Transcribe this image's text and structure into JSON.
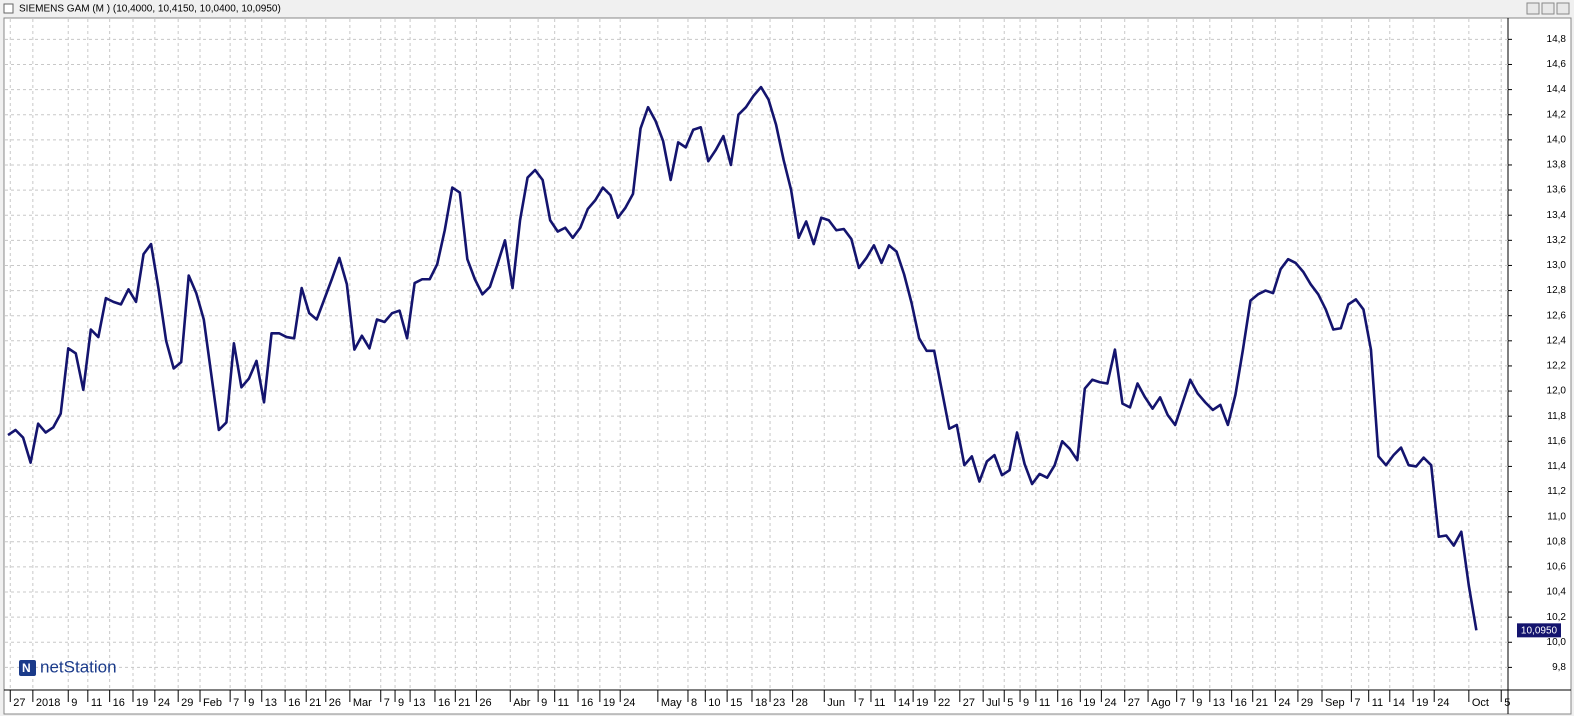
{
  "window_title": "SIEMENS GAM (M ) (10,4000, 10,4150, 10,0400, 10,0950)",
  "logo": "netStation",
  "chart_data": {
    "type": "line",
    "color": "#14146e",
    "grid": true,
    "last_value_label": "10,0950",
    "values": [
      11.65,
      11.69,
      11.63,
      11.43,
      11.74,
      11.67,
      11.71,
      11.82,
      12.34,
      12.3,
      12.01,
      12.49,
      12.43,
      12.74,
      12.71,
      12.69,
      12.81,
      12.71,
      13.09,
      13.17,
      12.81,
      12.4,
      12.18,
      12.23,
      12.92,
      12.78,
      12.57,
      12.13,
      11.69,
      11.75,
      12.38,
      12.03,
      12.1,
      12.24,
      11.91,
      12.46,
      12.46,
      12.43,
      12.42,
      12.82,
      12.62,
      12.57,
      12.73,
      12.89,
      13.06,
      12.85,
      12.33,
      12.44,
      12.34,
      12.57,
      12.55,
      12.62,
      12.64,
      12.42,
      12.86,
      12.89,
      12.89,
      13.01,
      13.28,
      13.62,
      13.58,
      13.05,
      12.89,
      12.77,
      12.83,
      13.01,
      13.2,
      12.82,
      13.36,
      13.7,
      13.76,
      13.68,
      13.36,
      13.27,
      13.3,
      13.22,
      13.3,
      13.45,
      13.52,
      13.62,
      13.56,
      13.38,
      13.46,
      13.57,
      14.09,
      14.26,
      14.15,
      13.99,
      13.68,
      13.98,
      13.94,
      14.08,
      14.1,
      13.83,
      13.92,
      14.03,
      13.8,
      14.2,
      14.26,
      14.35,
      14.42,
      14.32,
      14.12,
      13.84,
      13.6,
      13.22,
      13.35,
      13.17,
      13.38,
      13.36,
      13.28,
      13.29,
      13.21,
      12.98,
      13.06,
      13.16,
      13.02,
      13.16,
      13.11,
      12.93,
      12.7,
      12.42,
      12.32,
      12.32,
      12.01,
      11.7,
      11.73,
      11.41,
      11.48,
      11.28,
      11.44,
      11.49,
      11.33,
      11.37,
      11.67,
      11.42,
      11.26,
      11.34,
      11.31,
      11.41,
      11.6,
      11.54,
      11.45,
      12.02,
      12.09,
      12.07,
      12.06,
      12.33,
      11.9,
      11.87,
      12.06,
      11.95,
      11.86,
      11.95,
      11.81,
      11.73,
      11.91,
      12.09,
      11.98,
      11.91,
      11.85,
      11.89,
      11.73,
      11.97,
      12.33,
      12.72,
      12.77,
      12.8,
      12.78,
      12.97,
      13.05,
      13.02,
      12.95,
      12.85,
      12.77,
      12.65,
      12.49,
      12.5,
      12.69,
      12.73,
      12.65,
      12.33,
      11.48,
      11.41,
      11.49,
      11.55,
      11.41,
      11.4,
      11.47,
      11.41,
      10.84,
      10.85,
      10.77,
      10.88,
      10.45,
      10.095
    ],
    "xlim": [
      0,
      199.2
    ],
    "xticks": [
      {
        "value": 0.3,
        "label": "27"
      },
      {
        "value": 3.3,
        "label": "2018"
      },
      {
        "value": 8,
        "label": "9"
      },
      {
        "value": 10.6,
        "label": "11"
      },
      {
        "value": 13.5,
        "label": "16"
      },
      {
        "value": 16.6,
        "label": "19"
      },
      {
        "value": 19.5,
        "label": "24"
      },
      {
        "value": 22.6,
        "label": "29"
      },
      {
        "value": 25.5,
        "label": "Feb"
      },
      {
        "value": 29.5,
        "label": "7"
      },
      {
        "value": 31.5,
        "label": "9"
      },
      {
        "value": 33.7,
        "label": "13"
      },
      {
        "value": 36.8,
        "label": "16"
      },
      {
        "value": 39.6,
        "label": "21"
      },
      {
        "value": 42.2,
        "label": "26"
      },
      {
        "value": 45.4,
        "label": "Mar"
      },
      {
        "value": 49.5,
        "label": "7"
      },
      {
        "value": 51.4,
        "label": "9"
      },
      {
        "value": 53.4,
        "label": "13"
      },
      {
        "value": 56.7,
        "label": "16"
      },
      {
        "value": 59.4,
        "label": "21"
      },
      {
        "value": 62.2,
        "label": "26"
      },
      {
        "value": 66.7,
        "label": "Abr"
      },
      {
        "value": 70.4,
        "label": "9"
      },
      {
        "value": 72.6,
        "label": "11"
      },
      {
        "value": 75.7,
        "label": "16"
      },
      {
        "value": 78.6,
        "label": "19"
      },
      {
        "value": 81.3,
        "label": "24"
      },
      {
        "value": 86.3,
        "label": "May"
      },
      {
        "value": 90.3,
        "label": "8"
      },
      {
        "value": 92.6,
        "label": "10"
      },
      {
        "value": 95.5,
        "label": "15"
      },
      {
        "value": 98.8,
        "label": "18"
      },
      {
        "value": 101.2,
        "label": "23"
      },
      {
        "value": 104.2,
        "label": "28"
      },
      {
        "value": 108.4,
        "label": "Jun"
      },
      {
        "value": 112.5,
        "label": "7"
      },
      {
        "value": 114.6,
        "label": "11"
      },
      {
        "value": 117.8,
        "label": "14"
      },
      {
        "value": 120.2,
        "label": "19"
      },
      {
        "value": 123.1,
        "label": "22"
      },
      {
        "value": 126.4,
        "label": "27"
      },
      {
        "value": 129.5,
        "label": "Jul"
      },
      {
        "value": 132.3,
        "label": "5"
      },
      {
        "value": 134.4,
        "label": "9"
      },
      {
        "value": 136.5,
        "label": "11"
      },
      {
        "value": 139.4,
        "label": "16"
      },
      {
        "value": 142.4,
        "label": "19"
      },
      {
        "value": 145.2,
        "label": "24"
      },
      {
        "value": 148.3,
        "label": "27"
      },
      {
        "value": 151.4,
        "label": "Ago"
      },
      {
        "value": 155.2,
        "label": "7"
      },
      {
        "value": 157.4,
        "label": "9"
      },
      {
        "value": 159.6,
        "label": "13"
      },
      {
        "value": 162.5,
        "label": "16"
      },
      {
        "value": 165.3,
        "label": "21"
      },
      {
        "value": 168.3,
        "label": "24"
      },
      {
        "value": 171.3,
        "label": "29"
      },
      {
        "value": 174.5,
        "label": "Sep"
      },
      {
        "value": 178.4,
        "label": "7"
      },
      {
        "value": 180.7,
        "label": "11"
      },
      {
        "value": 183.5,
        "label": "14"
      },
      {
        "value": 186.6,
        "label": "19"
      },
      {
        "value": 189.4,
        "label": "24"
      },
      {
        "value": 194,
        "label": "Oct"
      },
      {
        "value": 198.3,
        "label": "5"
      }
    ],
    "ylim": [
      9.62,
      14.97
    ],
    "yticks": [
      {
        "value": 14.8,
        "label": "14,8"
      },
      {
        "value": 14.6,
        "label": "14,6"
      },
      {
        "value": 14.4,
        "label": "14,4"
      },
      {
        "value": 14.2,
        "label": "14,2"
      },
      {
        "value": 14.0,
        "label": "14,0"
      },
      {
        "value": 13.8,
        "label": "13,8"
      },
      {
        "value": 13.6,
        "label": "13,6"
      },
      {
        "value": 13.4,
        "label": "13,4"
      },
      {
        "value": 13.2,
        "label": "13,2"
      },
      {
        "value": 13.0,
        "label": "13,0"
      },
      {
        "value": 12.8,
        "label": "12,8"
      },
      {
        "value": 12.6,
        "label": "12,6"
      },
      {
        "value": 12.4,
        "label": "12,4"
      },
      {
        "value": 12.2,
        "label": "12,2"
      },
      {
        "value": 12.0,
        "label": "12,0"
      },
      {
        "value": 11.8,
        "label": "11,8"
      },
      {
        "value": 11.6,
        "label": "11,6"
      },
      {
        "value": 11.4,
        "label": "11,4"
      },
      {
        "value": 11.2,
        "label": "11,2"
      },
      {
        "value": 11.0,
        "label": "11,0"
      },
      {
        "value": 10.8,
        "label": "10,8"
      },
      {
        "value": 10.6,
        "label": "10,6"
      },
      {
        "value": 10.4,
        "label": "10,4"
      },
      {
        "value": 10.2,
        "label": "10,2"
      },
      {
        "value": 10.0,
        "label": "10,0"
      },
      {
        "value": 9.8,
        "label": "9,8"
      }
    ]
  }
}
